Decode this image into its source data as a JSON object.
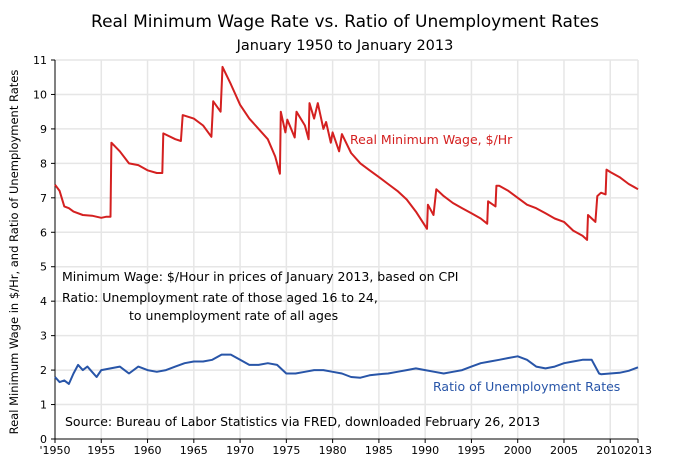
{
  "chart_data": {
    "type": "line",
    "title": "Real Minimum Wage Rate vs. Ratio of Unemployment Rates",
    "subtitle": "January 1950 to January 2013",
    "xlabel": "",
    "ylabel": "Real Minimum Wage in $/Hr, and Ratio of Unemployment Rates",
    "xlim": [
      1950,
      2013
    ],
    "ylim": [
      0,
      11
    ],
    "grid": true,
    "x_ticks": [
      1950,
      1955,
      1960,
      1965,
      1970,
      1975,
      1980,
      1985,
      1990,
      1995,
      2000,
      2005,
      2010,
      2013
    ],
    "x_tick_labels": [
      "'1950",
      "1955",
      "1960",
      "1965",
      "1970",
      "1975",
      "1980",
      "1985",
      "1990",
      "1995",
      "2000",
      "2005",
      "2010",
      "2013"
    ],
    "y_ticks": [
      0,
      1,
      2,
      3,
      4,
      5,
      6,
      7,
      8,
      9,
      10,
      11
    ],
    "y_tick_labels": [
      "0",
      "1",
      "2",
      "3",
      "4",
      "5",
      "6",
      "7",
      "8",
      "9",
      "10",
      "11"
    ],
    "annotations": [
      "Minimum Wage:  $/Hour in prices of January 2013, based on CPI",
      "Ratio:  Unemployment rate of those aged 16 to 24,",
      "to unemployment rate of all ages",
      "Source:  Bureau of Labor Statistics via FRED, downloaded February 26, 2013"
    ],
    "series": [
      {
        "name": "Real Minimum Wage, $/Hr",
        "color": "#d42020",
        "x": [
          1950.0,
          1950.5,
          1951,
          1951.5,
          1952,
          1953,
          1954,
          1955,
          1955.5,
          1956.0,
          1956.1,
          1957,
          1958,
          1959,
          1960,
          1961,
          1961.6,
          1961.7,
          1963,
          1963.6,
          1963.8,
          1965,
          1966,
          1966.9,
          1967.1,
          1967.9,
          1968.1,
          1969,
          1970,
          1971,
          1972,
          1973,
          1973.8,
          1974.3,
          1974.4,
          1974.9,
          1975.1,
          1975.9,
          1976.1,
          1977,
          1977.4,
          1977.5,
          1978,
          1978.4,
          1979,
          1979.3,
          1979.8,
          1980,
          1980.7,
          1981,
          1982,
          1983,
          1984,
          1985,
          1986,
          1987,
          1988,
          1989,
          1990.2,
          1990.3,
          1990.9,
          1991.2,
          1992,
          1993,
          1994,
          1995,
          1996,
          1996.7,
          1996.8,
          1997.6,
          1997.7,
          1998,
          1999,
          2000,
          2001,
          2002,
          2003,
          2004,
          2005,
          2006,
          2007,
          2007.5,
          2007.6,
          2008.4,
          2008.6,
          2009,
          2009.5,
          2009.6,
          2010,
          2011,
          2012,
          2013
        ],
        "y": [
          7.38,
          7.2,
          6.75,
          6.7,
          6.6,
          6.5,
          6.48,
          6.42,
          6.45,
          6.45,
          8.6,
          8.35,
          8.0,
          7.95,
          7.8,
          7.72,
          7.72,
          8.87,
          8.7,
          8.65,
          9.4,
          9.3,
          9.1,
          8.77,
          9.8,
          9.5,
          10.8,
          10.3,
          9.7,
          9.3,
          9.0,
          8.7,
          8.2,
          7.7,
          9.5,
          8.9,
          9.27,
          8.75,
          9.5,
          9.1,
          8.7,
          9.75,
          9.3,
          9.75,
          9.0,
          9.2,
          8.6,
          8.9,
          8.35,
          8.85,
          8.3,
          8.0,
          7.8,
          7.6,
          7.4,
          7.2,
          6.95,
          6.6,
          6.1,
          6.8,
          6.5,
          7.25,
          7.05,
          6.85,
          6.7,
          6.55,
          6.4,
          6.25,
          6.9,
          6.75,
          7.35,
          7.35,
          7.2,
          7.0,
          6.8,
          6.7,
          6.55,
          6.4,
          6.3,
          6.05,
          5.9,
          5.78,
          6.5,
          6.3,
          7.05,
          7.15,
          7.1,
          7.82,
          7.75,
          7.6,
          7.4,
          7.25
        ]
      },
      {
        "name": "Ratio of Unemployment Rates",
        "color": "#2855a8",
        "x": [
          1950,
          1950.5,
          1951,
          1951.5,
          1952,
          1952.5,
          1953,
          1953.5,
          1954,
          1954.5,
          1955,
          1956,
          1957,
          1958,
          1959,
          1960,
          1961,
          1962,
          1963,
          1964,
          1965,
          1966,
          1967,
          1968,
          1969,
          1970,
          1971,
          1972,
          1973,
          1974,
          1975,
          1976,
          1977,
          1978,
          1979,
          1980,
          1981,
          1982,
          1983,
          1984,
          1985,
          1986,
          1987,
          1988,
          1989,
          1990,
          1991,
          1992,
          1993,
          1994,
          1995,
          1996,
          1997,
          1998,
          1999,
          2000,
          2001,
          2002,
          2003,
          2004,
          2005,
          2006,
          2007,
          2008,
          2008.8,
          2009,
          2010,
          2011,
          2012,
          2013
        ],
        "y": [
          1.8,
          1.65,
          1.7,
          1.6,
          1.9,
          2.15,
          2.0,
          2.1,
          1.95,
          1.8,
          2.0,
          2.05,
          2.1,
          1.9,
          2.1,
          2.0,
          1.95,
          2.0,
          2.1,
          2.2,
          2.25,
          2.25,
          2.3,
          2.45,
          2.45,
          2.3,
          2.15,
          2.15,
          2.2,
          2.15,
          1.9,
          1.9,
          1.95,
          2.0,
          2.0,
          1.95,
          1.9,
          1.8,
          1.78,
          1.85,
          1.88,
          1.9,
          1.95,
          2.0,
          2.05,
          2.0,
          1.95,
          1.9,
          1.95,
          2.0,
          2.1,
          2.2,
          2.25,
          2.3,
          2.35,
          2.4,
          2.3,
          2.1,
          2.05,
          2.1,
          2.2,
          2.25,
          2.3,
          2.3,
          1.9,
          1.88,
          1.9,
          1.92,
          1.98,
          2.08
        ]
      }
    ]
  }
}
